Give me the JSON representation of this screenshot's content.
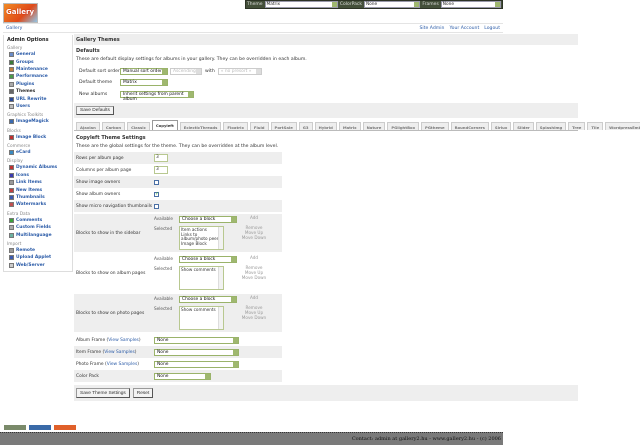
{
  "logo": {
    "text": "Gallery"
  },
  "topbar": {
    "theme_label": "Theme",
    "theme_value": "Matrix",
    "colorpack_label": "ColorPack",
    "colorpack_value": "None",
    "frames_label": "Frames",
    "frames_value": "None"
  },
  "nav": {
    "breadcrumb": "Gallery",
    "links": [
      "Site Admin",
      "Your Account",
      "Logout"
    ]
  },
  "sidebar": {
    "title": "Admin Options",
    "groups": [
      {
        "label": "Gallery",
        "items": [
          {
            "label": "General",
            "icon": "general-icon",
            "color": "#6a8cc8"
          },
          {
            "label": "Groups",
            "icon": "groups-icon",
            "color": "#3a7a3a"
          },
          {
            "label": "Maintenance",
            "icon": "maintenance-icon",
            "color": "#c08040"
          },
          {
            "label": "Performance",
            "icon": "performance-icon",
            "color": "#4a9a4a"
          },
          {
            "label": "Plugins",
            "icon": "plugins-icon",
            "color": "#aaa"
          },
          {
            "label": "Themes",
            "icon": "themes-icon",
            "color": "#666",
            "current": true
          },
          {
            "label": "URL Rewrite",
            "icon": "url-rewrite-icon",
            "color": "#2a4a9a"
          },
          {
            "label": "Users",
            "icon": "users-icon",
            "color": "#bbb"
          }
        ]
      },
      {
        "label": "Graphics Toolkits",
        "items": [
          {
            "label": "ImageMagick",
            "icon": "imagemagick-icon",
            "color": "#3a6ab0"
          }
        ]
      },
      {
        "label": "Blocks",
        "items": [
          {
            "label": "Image Block",
            "icon": "image-block-icon",
            "color": "#c03030"
          }
        ]
      },
      {
        "label": "Commerce",
        "items": [
          {
            "label": "eCard",
            "icon": "ecard-icon",
            "color": "#3a8ac0"
          }
        ]
      },
      {
        "label": "Display",
        "items": [
          {
            "label": "Dynamic Albums",
            "icon": "dynamic-albums-icon",
            "color": "#c03030"
          },
          {
            "label": "Icons",
            "icon": "icons-icon",
            "color": "#3a3ab0"
          },
          {
            "label": "Link Items",
            "icon": "link-items-icon",
            "color": "#999"
          },
          {
            "label": "New Items",
            "icon": "new-items-icon",
            "color": "#c04040"
          },
          {
            "label": "Thumbnails",
            "icon": "thumbnails-icon",
            "color": "#3a5ab0"
          },
          {
            "label": "Watermarks",
            "icon": "watermarks-icon",
            "color": "#c05050"
          }
        ]
      },
      {
        "label": "Extra Data",
        "items": [
          {
            "label": "Comments",
            "icon": "comments-icon",
            "color": "#3aa03a"
          },
          {
            "label": "Custom Fields",
            "icon": "custom-fields-icon",
            "color": "#aaa"
          },
          {
            "label": "Multilanguage",
            "icon": "multilanguage-icon",
            "color": "#6ab0a0"
          }
        ]
      },
      {
        "label": "Import",
        "items": [
          {
            "label": "Remote",
            "icon": "remote-icon",
            "color": "#999"
          },
          {
            "label": "Upload Applet",
            "icon": "upload-applet-icon",
            "color": "#3a5ab0"
          },
          {
            "label": "Web/Server",
            "icon": "web-server-icon",
            "color": "#ccc"
          }
        ]
      }
    ]
  },
  "main": {
    "title": "Gallery Themes",
    "defaults": {
      "heading": "Defaults",
      "description": "These are default display settings for albums in your gallery. They can be overridden in each album.",
      "sort_label": "Default sort order",
      "sort_value": "Manual sort order",
      "sort_dir": "Ascending",
      "with_label": "with",
      "presort": "« no presort »",
      "theme_label": "Default theme",
      "theme_value": "Matrix",
      "new_albums_label": "New albums",
      "new_albums_value": "Inherit settings from parent album",
      "save": "Save Defaults"
    },
    "tabs": [
      "Ajaxian",
      "Carbon",
      "Classic",
      "Copyleft",
      "EclecticThreads",
      "Floatrix",
      "Fluid",
      "PortSale",
      "G3",
      "Hybrid",
      "Matrix",
      "Nature",
      "PGlightBox",
      "PGtheme",
      "RoundCorners",
      "Siriux",
      "Slider",
      "SplashImg",
      "Tree",
      "Tile",
      "WordpressEmbedded"
    ],
    "active_tab": "Copyleft",
    "theme": {
      "heading": "Copyleft Theme Settings",
      "description": "These are the global settings for the theme. They can be overridden at the album level.",
      "rows_label": "Rows per album page",
      "rows_value": "3",
      "cols_label": "Columns per album page",
      "cols_value": "3",
      "show_image_owners": "Show image owners",
      "show_image_owners_checked": false,
      "show_album_owners": "Show album owners",
      "show_album_owners_checked": true,
      "show_micro_nav": "Show micro navigation thumbnails",
      "show_micro_nav_checked": false,
      "available_label": "Available",
      "selected_label": "Selected",
      "choose": "Choose a block",
      "add": "Add",
      "remove": "Remove",
      "move_up": "Move Up",
      "move_down": "Move Down",
      "sidebar_blocks_label": "Blocks to show in the sidebar",
      "sidebar_blocks": [
        "Item actions",
        "Links to album/photo peers",
        "Image Block"
      ],
      "album_blocks_label": "Blocks to show on album pages",
      "album_blocks": [
        "Show comments"
      ],
      "photo_blocks_label": "Blocks to show on photo pages",
      "photo_blocks": [
        "Show comments"
      ],
      "album_frame": "Album Frame",
      "item_frame": "Item Frame",
      "photo_frame": "Photo Frame",
      "view_samples": "View Samples",
      "frame_value": "None",
      "color_pack": "Color Pack",
      "color_pack_value": "None",
      "save": "Save Theme Settings",
      "reset": "Reset"
    }
  },
  "badges": [
    "VALID XHTML 1.0",
    "GALLERY 2.1",
    "MADE WITH GALLERY"
  ],
  "footer": "Contact: admin at gallery2.hu - www.gallery2.hu - (c) 2006"
}
